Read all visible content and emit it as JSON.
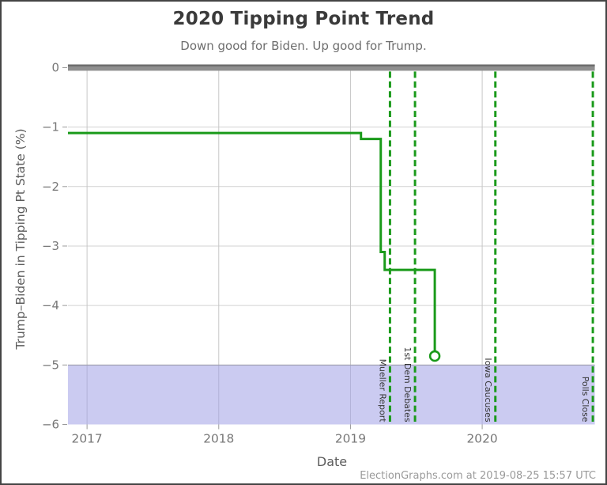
{
  "header": {
    "title": "2020 Tipping Point Trend",
    "subtitle": "Down good for Biden. Up good for Trump."
  },
  "axes": {
    "x_label": "Date",
    "y_label": "Trump–Biden in Tipping Pt State (%)"
  },
  "footer": {
    "credit": "ElectionGraphs.com at 2019-08-25 15:57 UTC"
  },
  "colors": {
    "line": "#1a9a1a",
    "event_line": "#1a9a1a",
    "event_text": "#333333",
    "band_fill": "rgba(160,160,230,0.55)",
    "band_top_line": "#9a9aa8",
    "zero_bar": "#8f8f8f",
    "zero_bar_edge": "#6d6d6d",
    "grid_horizontal": "#d2d2d2",
    "grid_vertical": "#c6c6c6",
    "tick_mark": "#999999",
    "tick_text": "#777777"
  },
  "chart_data": {
    "type": "line",
    "step": true,
    "title": "2020 Tipping Point Trend",
    "subtitle": "Down good for Biden. Up good for Trump.",
    "xlabel": "Date",
    "ylabel": "Trump-Biden in Tipping Pt State (%)",
    "x_domain": [
      2016.855,
      2020.855
    ],
    "y_domain": [
      -6,
      0
    ],
    "grid": true,
    "x_ticks": [
      {
        "value": 2017,
        "label": "2017"
      },
      {
        "value": 2018,
        "label": "2018"
      },
      {
        "value": 2019,
        "label": "2019"
      },
      {
        "value": 2020,
        "label": "2020"
      }
    ],
    "y_ticks": [
      {
        "value": 0,
        "label": "0"
      },
      {
        "value": -1,
        "label": "−1"
      },
      {
        "value": -2,
        "label": "−2"
      },
      {
        "value": -3,
        "label": "−3"
      },
      {
        "value": -4,
        "label": "−4"
      },
      {
        "value": -5,
        "label": "−5"
      },
      {
        "value": -6,
        "label": "−6"
      }
    ],
    "series": [
      {
        "name": "Trump-Biden margin in tipping point state",
        "color": "#1a9a1a",
        "points": [
          [
            2016.855,
            -1.1
          ],
          [
            2019.08,
            -1.1
          ],
          [
            2019.08,
            -1.2
          ],
          [
            2019.23,
            -1.2
          ],
          [
            2019.23,
            -3.1
          ],
          [
            2019.26,
            -3.1
          ],
          [
            2019.26,
            -3.4
          ],
          [
            2019.64,
            -3.4
          ],
          [
            2019.64,
            -4.85
          ]
        ]
      }
    ],
    "endpoint": {
      "x": 2019.64,
      "y": -4.85,
      "marker": "open-circle"
    },
    "events": [
      {
        "label": "Mueller Report",
        "slug": "mueller-report",
        "x": 2019.3
      },
      {
        "label": "1st Dem Debates",
        "slug": "1st-dem-debates",
        "x": 2019.49
      },
      {
        "label": "Iowa Caucuses",
        "slug": "iowa-caucuses",
        "x": 2020.1
      },
      {
        "label": "Polls Close",
        "slug": "polls-close",
        "x": 2020.84
      }
    ],
    "shaded_band": {
      "y_from": -5,
      "y_to": -6
    },
    "zero_bar": {
      "y": 0
    }
  }
}
